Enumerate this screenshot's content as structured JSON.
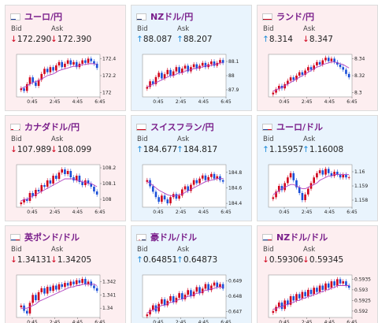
{
  "labels": {
    "bid": "Bid",
    "ask": "Ask"
  },
  "colors": {
    "down_bg": "#fdeef0",
    "up_bg": "#e9f4fd",
    "title": "#7a1f8b",
    "arrow_down": "#d0021b",
    "arrow_up": "#1a8ad8",
    "candle_up": "#d0021b",
    "candle_down": "#1a4fd8",
    "ma_line": "#b040c0"
  },
  "cards": [
    {
      "title": "ユーロ/円",
      "flag": "eu-flag-icon",
      "trend": "down",
      "bid": "172.290",
      "ask": "172.390",
      "bid_dir": "down",
      "ask_dir": "down",
      "chart_data": {
        "type": "candlestick",
        "x_ticks": [
          "0:45",
          "2:45",
          "4:45",
          "6:45"
        ],
        "y_ticks": [
          "172.4",
          "172.2",
          "172"
        ],
        "ylim": [
          171.95,
          172.45
        ],
        "closes": [
          172.05,
          172.02,
          172.1,
          172.18,
          172.12,
          172.08,
          172.15,
          172.22,
          172.28,
          172.24,
          172.3,
          172.26,
          172.32,
          172.36,
          172.3,
          172.34,
          172.38,
          172.33,
          172.36,
          172.3,
          172.34,
          172.38,
          172.35,
          172.4,
          172.37,
          172.34,
          172.29
        ],
        "ma": [
          172.05,
          172.06,
          172.08,
          172.1,
          172.12,
          172.13,
          172.14,
          172.16,
          172.18,
          172.2,
          172.21,
          172.22,
          172.24,
          172.26,
          172.27,
          172.28,
          172.29,
          172.3,
          172.31,
          172.31,
          172.32,
          172.33,
          172.33,
          172.34,
          172.34,
          172.34,
          172.33
        ]
      }
    },
    {
      "title": "NZドル/円",
      "flag": "nz-flag-icon",
      "trend": "up",
      "bid": "88.087",
      "ask": "88.207",
      "bid_dir": "up",
      "ask_dir": "up",
      "chart_data": {
        "type": "candlestick",
        "x_ticks": [
          "0:45",
          "2:45",
          "4:45",
          "6:45"
        ],
        "y_ticks": [
          "88.1",
          "88",
          "87.9"
        ],
        "ylim": [
          87.85,
          88.15
        ],
        "closes": [
          87.92,
          87.96,
          87.94,
          87.99,
          88.02,
          87.98,
          88.01,
          88.04,
          88.0,
          88.03,
          88.06,
          88.02,
          88.05,
          88.07,
          88.03,
          88.06,
          88.08,
          88.05,
          88.07,
          88.09,
          88.06,
          88.08,
          88.1,
          88.07,
          88.09,
          88.11,
          88.09
        ],
        "ma": [
          87.92,
          87.93,
          87.94,
          87.95,
          87.96,
          87.97,
          87.98,
          87.99,
          88.0,
          88.0,
          88.01,
          88.02,
          88.02,
          88.03,
          88.04,
          88.04,
          88.05,
          88.05,
          88.06,
          88.06,
          88.07,
          88.07,
          88.07,
          88.08,
          88.08,
          88.09,
          88.09
        ]
      }
    },
    {
      "title": "ランド/円",
      "flag": "za-flag-icon",
      "trend": "down",
      "bid": "8.314",
      "ask": "8.347",
      "bid_dir": "up",
      "ask_dir": "down",
      "chart_data": {
        "type": "candlestick",
        "x_ticks": [
          "0:45",
          "2:45",
          "4:45",
          "6:45"
        ],
        "y_ticks": [
          "8.34",
          "8.32",
          "8.3"
        ],
        "ylim": [
          8.295,
          8.345
        ],
        "closes": [
          8.3,
          8.304,
          8.308,
          8.305,
          8.31,
          8.314,
          8.318,
          8.315,
          8.32,
          8.324,
          8.321,
          8.326,
          8.33,
          8.327,
          8.332,
          8.336,
          8.333,
          8.338,
          8.341,
          8.337,
          8.34,
          8.336,
          8.333,
          8.33,
          8.327,
          8.322,
          8.318
        ],
        "ma": [
          8.302,
          8.303,
          8.305,
          8.306,
          8.308,
          8.31,
          8.312,
          8.314,
          8.316,
          8.318,
          8.32,
          8.322,
          8.324,
          8.326,
          8.328,
          8.33,
          8.331,
          8.333,
          8.334,
          8.335,
          8.336,
          8.336,
          8.335,
          8.334,
          8.333,
          8.331,
          8.329
        ]
      }
    },
    {
      "title": "カナダドル/円",
      "flag": "ca-flag-icon",
      "trend": "down",
      "bid": "107.989",
      "ask": "108.099",
      "bid_dir": "down",
      "ask_dir": "down",
      "chart_data": {
        "type": "candlestick",
        "x_ticks": [
          "0:45",
          "2:45",
          "4:45",
          "6:45"
        ],
        "y_ticks": [
          "108.2",
          "108.1",
          "108"
        ],
        "ylim": [
          107.95,
          108.22
        ],
        "closes": [
          107.98,
          108.0,
          107.99,
          108.04,
          108.02,
          108.06,
          108.05,
          108.09,
          108.08,
          108.12,
          108.1,
          108.15,
          108.13,
          108.17,
          108.19,
          108.16,
          108.18,
          108.14,
          108.12,
          108.15,
          108.11,
          108.09,
          108.12,
          108.1,
          108.08,
          108.05,
          108.03
        ],
        "ma": [
          107.99,
          108.0,
          108.0,
          108.01,
          108.02,
          108.03,
          108.04,
          108.05,
          108.06,
          108.07,
          108.08,
          108.09,
          108.1,
          108.11,
          108.12,
          108.13,
          108.13,
          108.13,
          108.13,
          108.12,
          108.12,
          108.11,
          108.11,
          108.1,
          108.1,
          108.09,
          108.08
        ]
      }
    },
    {
      "title": "スイスフラン/円",
      "flag": "ch-flag-icon",
      "trend": "up",
      "bid": "184.677",
      "ask": "184.817",
      "bid_dir": "up",
      "ask_dir": "up",
      "chart_data": {
        "type": "candlestick",
        "x_ticks": [
          "0:45",
          "2:45",
          "4:45",
          "6:45"
        ],
        "y_ticks": [
          "184.8",
          "184.6",
          "184.4"
        ],
        "ylim": [
          184.35,
          184.9
        ],
        "closes": [
          184.7,
          184.62,
          184.55,
          184.48,
          184.42,
          184.5,
          184.45,
          184.4,
          184.48,
          184.52,
          184.46,
          184.5,
          184.58,
          184.62,
          184.56,
          184.64,
          184.7,
          184.66,
          184.72,
          184.76,
          184.7,
          184.74,
          184.78,
          184.72,
          184.75,
          184.7,
          184.68
        ],
        "ma": [
          184.68,
          184.66,
          184.63,
          184.6,
          184.57,
          184.55,
          184.53,
          184.51,
          184.5,
          184.5,
          184.5,
          184.51,
          184.52,
          184.54,
          184.56,
          184.58,
          184.6,
          184.62,
          184.64,
          184.66,
          184.68,
          184.69,
          184.7,
          184.71,
          184.72,
          184.72,
          184.72
        ]
      }
    },
    {
      "title": "ユーロ/ドル",
      "flag": "us-flag-icon",
      "trend": "up",
      "bid": "1.15957",
      "ask": "1.16008",
      "bid_dir": "up",
      "ask_dir": "up",
      "chart_data": {
        "type": "candlestick",
        "x_ticks": [
          "0:45",
          "2:45",
          "4:45",
          "6:45"
        ],
        "y_ticks": [
          "1.16",
          "1.159",
          "1.158"
        ],
        "ylim": [
          1.1575,
          1.1605
        ],
        "closes": [
          1.1582,
          1.1586,
          1.159,
          1.1587,
          1.1592,
          1.1596,
          1.1599,
          1.1594,
          1.1589,
          1.1585,
          1.158,
          1.1584,
          1.1588,
          1.1592,
          1.1596,
          1.1599,
          1.1601,
          1.1598,
          1.1602,
          1.1599,
          1.1597,
          1.16,
          1.1598,
          1.1596,
          1.1598,
          1.1596,
          1.1596
        ],
        "ma": [
          1.1584,
          1.1585,
          1.1587,
          1.1588,
          1.1589,
          1.159,
          1.1591,
          1.1591,
          1.159,
          1.1589,
          1.1588,
          1.1588,
          1.1589,
          1.159,
          1.1591,
          1.1592,
          1.1594,
          1.1595,
          1.1596,
          1.1597,
          1.1597,
          1.1598,
          1.1598,
          1.1598,
          1.1598,
          1.1598,
          1.1598
        ]
      }
    },
    {
      "title": "英ポンド/ドル",
      "flag": "gb-flag-icon",
      "trend": "down",
      "bid": "1.34131",
      "ask": "1.34205",
      "bid_dir": "down",
      "ask_dir": "down",
      "chart_data": {
        "type": "candlestick",
        "x_ticks": [
          "0:45",
          "2:45",
          "4:45",
          "6:45"
        ],
        "y_ticks": [
          "1.342",
          "1.341",
          "1.34"
        ],
        "ylim": [
          1.3393,
          1.3425
        ],
        "closes": [
          1.3402,
          1.3398,
          1.3396,
          1.3404,
          1.341,
          1.3406,
          1.3412,
          1.3415,
          1.3411,
          1.3416,
          1.3413,
          1.3417,
          1.3414,
          1.3418,
          1.3416,
          1.3419,
          1.3417,
          1.342,
          1.3418,
          1.3421,
          1.3419,
          1.3422,
          1.3418,
          1.342,
          1.3417,
          1.3415,
          1.3413
        ],
        "ma": [
          1.34,
          1.34,
          1.34,
          1.3401,
          1.3402,
          1.3403,
          1.3405,
          1.3406,
          1.3407,
          1.3408,
          1.3409,
          1.341,
          1.3411,
          1.3412,
          1.3413,
          1.3414,
          1.3415,
          1.3416,
          1.3416,
          1.3417,
          1.3417,
          1.3418,
          1.3418,
          1.3418,
          1.3418,
          1.3418,
          1.3417
        ]
      }
    },
    {
      "title": "豪ドル/ドル",
      "flag": "au-flag-icon",
      "trend": "up",
      "bid": "0.64851",
      "ask": "0.64873",
      "bid_dir": "up",
      "ask_dir": "up",
      "chart_data": {
        "type": "candlestick",
        "x_ticks": [
          "0:45",
          "2:45",
          "4:45",
          "6:45"
        ],
        "y_ticks": [
          "0.649",
          "0.648",
          "0.647"
        ],
        "ylim": [
          0.6466,
          0.6494
        ],
        "closes": [
          0.6468,
          0.6471,
          0.6474,
          0.647,
          0.6475,
          0.6478,
          0.6474,
          0.6477,
          0.648,
          0.6476,
          0.6479,
          0.6482,
          0.6478,
          0.6481,
          0.6484,
          0.648,
          0.6483,
          0.6486,
          0.6482,
          0.6485,
          0.6488,
          0.6484,
          0.6487,
          0.6489,
          0.6486,
          0.6488,
          0.6485
        ],
        "ma": [
          0.6469,
          0.647,
          0.6471,
          0.6472,
          0.6473,
          0.6474,
          0.6474,
          0.6475,
          0.6476,
          0.6476,
          0.6477,
          0.6478,
          0.6478,
          0.6479,
          0.648,
          0.648,
          0.6481,
          0.6482,
          0.6482,
          0.6483,
          0.6484,
          0.6484,
          0.6485,
          0.6485,
          0.6486,
          0.6486,
          0.6486
        ]
      }
    },
    {
      "title": "NZドル/ドル",
      "flag": "us-flag-icon",
      "trend": "down",
      "bid": "0.59306",
      "ask": "0.59345",
      "bid_dir": "down",
      "ask_dir": "down",
      "chart_data": {
        "type": "candlestick",
        "x_ticks": [
          "0:45",
          "2:45",
          "4:45",
          "6:45"
        ],
        "y_ticks": [
          "0.5935",
          "0.593",
          "0.5925",
          "0.592"
        ],
        "ylim": [
          0.5917,
          0.5937
        ],
        "closes": [
          0.592,
          0.5922,
          0.5924,
          0.5921,
          0.5925,
          0.5923,
          0.5927,
          0.5925,
          0.5928,
          0.5926,
          0.5929,
          0.5927,
          0.593,
          0.5928,
          0.5931,
          0.5929,
          0.5932,
          0.593,
          0.5933,
          0.5931,
          0.5934,
          0.5932,
          0.5935,
          0.5933,
          0.5934,
          0.5932,
          0.5931
        ],
        "ma": [
          0.5921,
          0.5921,
          0.5922,
          0.5922,
          0.5923,
          0.5923,
          0.5924,
          0.5924,
          0.5925,
          0.5925,
          0.5926,
          0.5926,
          0.5927,
          0.5927,
          0.5928,
          0.5928,
          0.5929,
          0.5929,
          0.593,
          0.593,
          0.5931,
          0.5931,
          0.5932,
          0.5932,
          0.5932,
          0.5932,
          0.5932
        ]
      }
    }
  ]
}
